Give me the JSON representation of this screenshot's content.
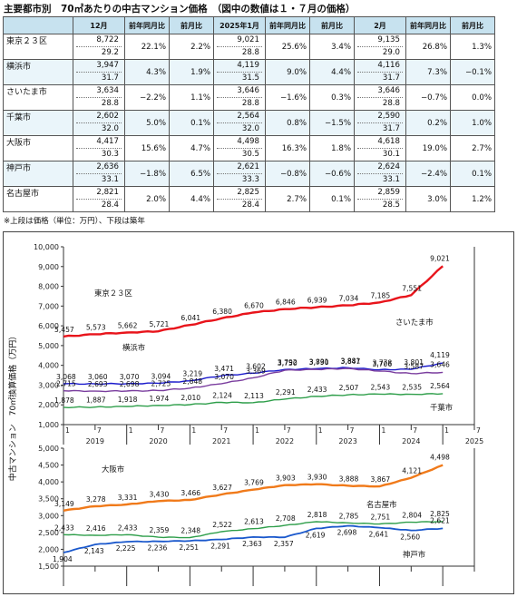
{
  "title": "主要都市別　70㎡あたりの中古マンション価格　（図中の数値は１・７月の価格）",
  "note": "※上段は価格（単位：万円）、下段は築年",
  "table": {
    "periods": [
      "12月",
      "2025年1月",
      "2月"
    ],
    "subheaders": [
      "前年同月比",
      "前月比"
    ],
    "rows": [
      {
        "city": "東京２３区",
        "cells": [
          {
            "price": "8,722",
            "age": "29.2",
            "yoy": "22.1%",
            "mom": "2.2%"
          },
          {
            "price": "9,021",
            "age": "28.8",
            "yoy": "25.6%",
            "mom": "3.4%"
          },
          {
            "price": "9,135",
            "age": "29.0",
            "yoy": "26.8%",
            "mom": "1.3%"
          }
        ]
      },
      {
        "city": "横浜市",
        "cells": [
          {
            "price": "3,947",
            "age": "31.7",
            "yoy": "4.3%",
            "mom": "1.9%"
          },
          {
            "price": "4,119",
            "age": "31.5",
            "yoy": "9.0%",
            "mom": "4.4%"
          },
          {
            "price": "4,116",
            "age": "31.7",
            "yoy": "7.3%",
            "mom": "−0.1%"
          }
        ]
      },
      {
        "city": "さいたま市",
        "cells": [
          {
            "price": "3,634",
            "age": "28.8",
            "yoy": "−2.2%",
            "mom": "1.1%"
          },
          {
            "price": "3,646",
            "age": "28.8",
            "yoy": "−1.6%",
            "mom": "0.3%"
          },
          {
            "price": "3,646",
            "age": "28.8",
            "yoy": "−0.7%",
            "mom": "0.0%"
          }
        ]
      },
      {
        "city": "千葉市",
        "cells": [
          {
            "price": "2,602",
            "age": "32.0",
            "yoy": "5.0%",
            "mom": "0.1%"
          },
          {
            "price": "2,564",
            "age": "32.0",
            "yoy": "0.8%",
            "mom": "−1.5%"
          },
          {
            "price": "2,590",
            "age": "31.7",
            "yoy": "0.2%",
            "mom": "1.0%"
          }
        ]
      },
      {
        "city": "大阪市",
        "cells": [
          {
            "price": "4,417",
            "age": "30.3",
            "yoy": "15.6%",
            "mom": "4.7%"
          },
          {
            "price": "4,498",
            "age": "30.5",
            "yoy": "16.3%",
            "mom": "1.8%"
          },
          {
            "price": "4,618",
            "age": "30.1",
            "yoy": "19.0%",
            "mom": "2.7%"
          }
        ]
      },
      {
        "city": "神戸市",
        "cells": [
          {
            "price": "2,636",
            "age": "33.1",
            "yoy": "−1.8%",
            "mom": "6.5%"
          },
          {
            "price": "2,621",
            "age": "33.3",
            "yoy": "−0.8%",
            "mom": "−0.6%"
          },
          {
            "price": "2,624",
            "age": "33.1",
            "yoy": "−2.4%",
            "mom": "0.1%"
          }
        ]
      },
      {
        "city": "名古屋市",
        "cells": [
          {
            "price": "2,821",
            "age": "28.4",
            "yoy": "2.0%",
            "mom": "4.4%"
          },
          {
            "price": "2,825",
            "age": "28.4",
            "yoy": "2.7%",
            "mom": "0.1%"
          },
          {
            "price": "2,859",
            "age": "28.5",
            "yoy": "3.0%",
            "mom": "1.2%"
          }
        ]
      }
    ]
  },
  "chart_data": [
    {
      "type": "line",
      "ylabel": "中古マンション　70㎡換算価格（万円）",
      "ylim": [
        1000,
        10000
      ],
      "yticks": [
        "1,000",
        "2,000",
        "3,000",
        "4,000",
        "5,000",
        "6,000",
        "7,000",
        "8,000",
        "9,000",
        "10,000"
      ],
      "x_tick_labels": [
        "1",
        "7",
        "1",
        "7",
        "1",
        "7",
        "1",
        "7",
        "1",
        "7",
        "1",
        "7",
        "1",
        "7"
      ],
      "year_labels": [
        "2019",
        "2020",
        "2021",
        "2022",
        "2023",
        "2024",
        "2025"
      ],
      "x_months": [
        0,
        6,
        12,
        18,
        24,
        30,
        36,
        42,
        48,
        54,
        60,
        66,
        72
      ],
      "grid": false,
      "series": [
        {
          "name": "東京２３区",
          "color": "#e8141b",
          "values": [
            5457,
            5573,
            5662,
            5721,
            6041,
            6380,
            6670,
            6846,
            6939,
            7034,
            7185,
            7551,
            9021
          ],
          "labels": [
            "5,457",
            "5,573",
            "5,662",
            "5,721",
            "6,041",
            "6,380",
            "6,670",
            "6,846",
            "6,939",
            "7,034",
            "7,185",
            "7,551",
            "9,021"
          ]
        },
        {
          "name": "横浜市",
          "color": "#1a1acc",
          "values": [
            3068,
            3060,
            3070,
            3094,
            3219,
            3471,
            3602,
            3792,
            3831,
            3881,
            3778,
            3801,
            4119
          ],
          "labels": [
            "3,068",
            "3,060",
            "3,070",
            "3,094",
            "3,219",
            "3,471",
            "3,602",
            "3,792",
            "3,831",
            "3,881",
            "3,778",
            "3,801",
            "4,119"
          ]
        },
        {
          "name": "さいたま市",
          "color": "#7a3d9e",
          "values": [
            2715,
            2693,
            2698,
            2725,
            2848,
            3070,
            3369,
            3750,
            3790,
            3847,
            3706,
            3587,
            3646
          ],
          "labels": [
            "2,715",
            "2,693",
            "2,698",
            "2,725",
            "2,848",
            "3,070",
            "3,369",
            "3,750",
            "3,790",
            "3,847",
            "3,706",
            "3,587",
            "3,646"
          ]
        },
        {
          "name": "千葉市",
          "color": "#2e9e4a",
          "values": [
            1878,
            1887,
            1918,
            1974,
            2010,
            2124,
            2113,
            2291,
            2433,
            2507,
            2543,
            2535,
            2564
          ],
          "labels": [
            "1,878",
            "1,887",
            "1,918",
            "1,974",
            "2,010",
            "2,124",
            "2,113",
            "2,291",
            "2,433",
            "2,507",
            "2,543",
            "2,535",
            "2,564"
          ]
        }
      ]
    },
    {
      "type": "line",
      "ylim": [
        1500,
        5000
      ],
      "yticks": [
        "1,500",
        "2,000",
        "2,500",
        "3,000",
        "3,500",
        "4,000",
        "4,500",
        "5,000"
      ],
      "x_months": [
        0,
        6,
        12,
        18,
        24,
        30,
        36,
        42,
        48,
        54,
        60,
        66,
        72
      ],
      "grid": false,
      "series": [
        {
          "name": "大阪市",
          "color": "#f07a1a",
          "values": [
            3149,
            3278,
            3331,
            3430,
            3466,
            3627,
            3769,
            3903,
            3930,
            3888,
            3867,
            4121,
            4498
          ],
          "labels": [
            "3,149",
            "3,278",
            "3,331",
            "3,430",
            "3,466",
            "3,627",
            "3,769",
            "3,903",
            "3,930",
            "3,888",
            "3,867",
            "4,121",
            "4,498"
          ]
        },
        {
          "name": "名古屋市",
          "color": "#2e9e4a",
          "values": [
            2433,
            2416,
            2433,
            2359,
            2348,
            2522,
            2613,
            2708,
            2818,
            2785,
            2751,
            2804,
            2825
          ],
          "labels": [
            "2,433",
            "2,416",
            "2,433",
            "2,359",
            "2,348",
            "2,522",
            "2,613",
            "2,708",
            "2,818",
            "2,785",
            "2,751",
            "2,804",
            "2,825"
          ]
        },
        {
          "name": "神戸市",
          "color": "#1a58cc",
          "values": [
            1904,
            2143,
            2225,
            2236,
            2251,
            2291,
            2363,
            2357,
            2619,
            2698,
            2641,
            2560,
            2621
          ],
          "labels": [
            "1,904",
            "2,143",
            "2,225",
            "2,236",
            "2,251",
            "2,291",
            "2,363",
            "2,357",
            "2,619",
            "2,698",
            "2,641",
            "2,560",
            "2,621"
          ]
        }
      ]
    }
  ]
}
